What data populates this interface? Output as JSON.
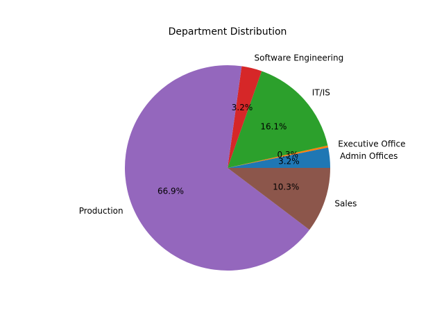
{
  "chart_data": {
    "type": "pie",
    "title": "Department Distribution",
    "start_angle_deg": 0,
    "direction": "counterclockwise",
    "slices": [
      {
        "label": "Admin Offices",
        "pct": 3.2,
        "pct_label": "3.2%",
        "color": "#1f77b4"
      },
      {
        "label": "Executive Office",
        "pct": 0.3,
        "pct_label": "0.3%",
        "color": "#ff7f0e"
      },
      {
        "label": "IT/IS",
        "pct": 16.1,
        "pct_label": "16.1%",
        "color": "#2ca02c"
      },
      {
        "label": "Software Engineering",
        "pct": 3.2,
        "pct_label": "3.2%",
        "color": "#d62728"
      },
      {
        "label": "Production",
        "pct": 66.9,
        "pct_label": "66.9%",
        "color": "#9467bd"
      },
      {
        "label": "Sales",
        "pct": 10.3,
        "pct_label": "10.3%",
        "color": "#8c564b"
      }
    ]
  }
}
